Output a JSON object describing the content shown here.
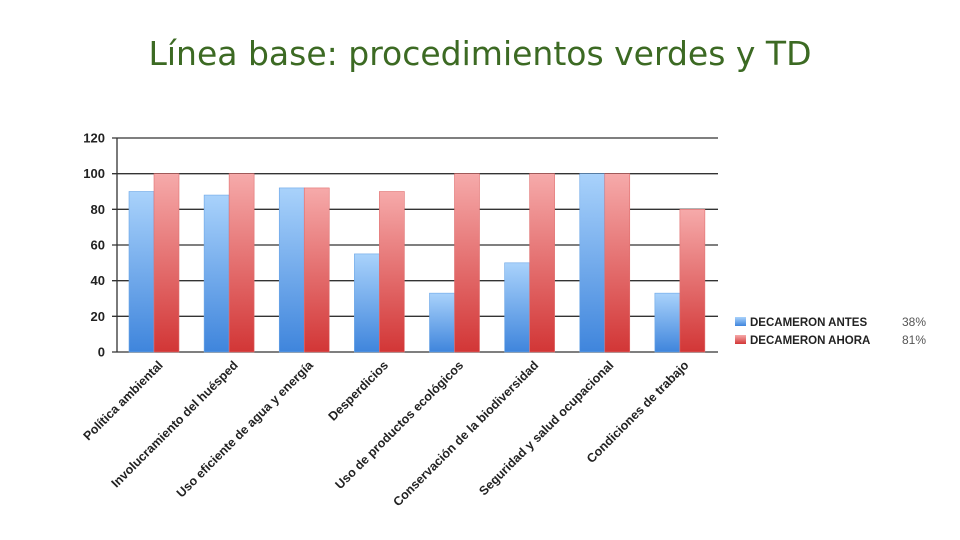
{
  "slide": {
    "title": "Línea base: procedimientos verdes y TD"
  },
  "chart_data": {
    "type": "bar",
    "categories": [
      "Política ambiental",
      "Involucramiento del huésped",
      "Uso eficiente de agua y energía",
      "Desperdicios",
      "Uso de productos ecológicos",
      "Conservación de la biodiversidad",
      "Seguridad y salud ocupacional",
      "Condiciones de trabajo"
    ],
    "series": [
      {
        "name": "DECAMERON ANTES",
        "values": [
          90,
          88,
          92,
          55,
          33,
          50,
          100,
          33
        ],
        "color": "#4a90e2",
        "summary": "38%"
      },
      {
        "name": "DECAMERON AHORA",
        "values": [
          100,
          100,
          92,
          90,
          100,
          100,
          100,
          80
        ],
        "color": "#d83a3a",
        "summary": "81%"
      }
    ],
    "ylim": [
      0,
      120
    ],
    "yticks": [
      0,
      20,
      40,
      60,
      80,
      100,
      120
    ],
    "grid": true,
    "legend_position": "right",
    "title": "",
    "xlabel": "",
    "ylabel": ""
  }
}
